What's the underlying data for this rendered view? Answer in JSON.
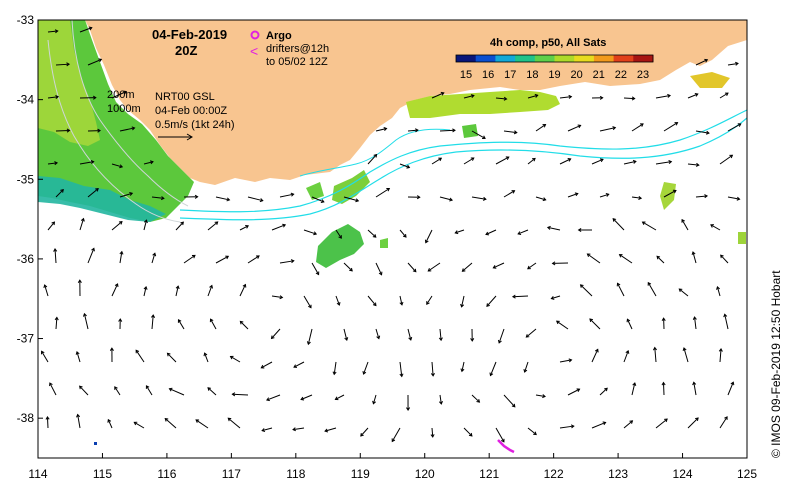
{
  "map": {
    "title_date": "04-Feb-2019",
    "title_time": "20Z",
    "argo_label": "Argo",
    "drifters_label": "drifters@12h",
    "drifters_to": "to 05/02 12Z",
    "isobath_200": "200m",
    "isobath_1000": "1000m",
    "model_name": "NRT00 GSL",
    "model_time": "04-Feb 00:00Z",
    "scale_label": "0.5m/s (1kt 24h)",
    "colorbar_title": "4h comp, p50, All Sats",
    "credit": "© IMOS 09-Feb-2019 12:50 Hobart",
    "colors": {
      "land": "#f8c590",
      "argo": "#e020e0",
      "current_contour": "#22dde8",
      "isobath": "#cfd6d8"
    }
  },
  "chart_data": {
    "type": "map",
    "x_ticks": [
      "114",
      "115",
      "116",
      "117",
      "118",
      "119",
      "120",
      "121",
      "122",
      "123",
      "124",
      "125"
    ],
    "y_ticks": [
      "-33",
      "-34",
      "-35",
      "-36",
      "-37",
      "-38"
    ],
    "xlim": [
      114,
      125
    ],
    "ylim": [
      -38.5,
      -33
    ],
    "colorbar": {
      "ticks": [
        "15",
        "16",
        "17",
        "18",
        "19",
        "20",
        "21",
        "22",
        "23"
      ],
      "colors": [
        "#08167a",
        "#0a4fd0",
        "#12a9d8",
        "#1fc38a",
        "#5ed04a",
        "#aedb2a",
        "#e8dc1f",
        "#f29a1c",
        "#e2401a",
        "#a81512"
      ]
    }
  }
}
